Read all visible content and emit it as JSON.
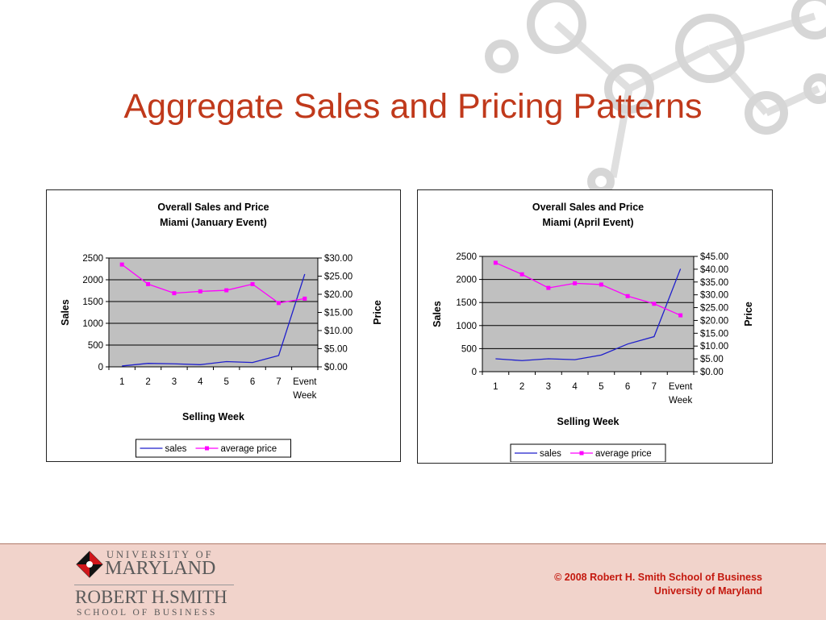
{
  "slide": {
    "title": "Aggregate Sales and Pricing Patterns",
    "footer_line1": "© 2008 Robert H. Smith School of Business",
    "footer_line2": "University of Maryland"
  },
  "logo": {
    "university_of": "UNIVERSITY OF",
    "maryland": "MARYLAND",
    "robert_h_smith": "ROBERT H.SMITH",
    "school_of_business": "SCHOOL OF BUSINESS"
  },
  "colors": {
    "title": "#c0391b",
    "sales_line": "#1f1fcc",
    "price_line": "#ff00ff",
    "plot_bg": "#c0c0c0",
    "footer_bg": "#f1d3cb",
    "footer_text": "#c4180e"
  },
  "chart_data": [
    {
      "type": "line",
      "title": "Overall Sales and Price",
      "subtitle": "Miami (January Event)",
      "xlabel": "Selling Week",
      "ylabel": "Sales",
      "y2label": "Price",
      "categories": [
        "1",
        "2",
        "3",
        "4",
        "5",
        "6",
        "7",
        "Event Week"
      ],
      "ylim": [
        0,
        2500
      ],
      "yticks": [
        0,
        500,
        1000,
        1500,
        2000,
        2500
      ],
      "y2lim": [
        0,
        30
      ],
      "y2ticks": [
        "$0.00",
        "$5.00",
        "$10.00",
        "$15.00",
        "$20.00",
        "$25.00",
        "$30.00"
      ],
      "grid": true,
      "legend": "bottom",
      "series": [
        {
          "name": "sales",
          "axis": "left",
          "marker": false,
          "values": [
            20,
            80,
            70,
            50,
            120,
            100,
            260,
            2130
          ]
        },
        {
          "name": "average price",
          "axis": "right",
          "marker": true,
          "values": [
            28.2,
            22.8,
            20.3,
            20.8,
            21.1,
            22.8,
            17.6,
            18.8
          ]
        }
      ]
    },
    {
      "type": "line",
      "title": "Overall Sales and Price",
      "subtitle": "Miami (April Event)",
      "xlabel": "Selling Week",
      "ylabel": "Sales",
      "y2label": "Price",
      "categories": [
        "1",
        "2",
        "3",
        "4",
        "5",
        "6",
        "7",
        "Event Week"
      ],
      "ylim": [
        0,
        2500
      ],
      "yticks": [
        0,
        500,
        1000,
        1500,
        2000,
        2500
      ],
      "y2lim": [
        0,
        45
      ],
      "y2ticks": [
        "$0.00",
        "$5.00",
        "$10.00",
        "$15.00",
        "$20.00",
        "$25.00",
        "$30.00",
        "$35.00",
        "$40.00",
        "$45.00"
      ],
      "grid": true,
      "legend": "bottom",
      "series": [
        {
          "name": "sales",
          "axis": "left",
          "marker": false,
          "values": [
            280,
            240,
            280,
            260,
            360,
            600,
            760,
            2230
          ]
        },
        {
          "name": "average price",
          "axis": "right",
          "marker": true,
          "values": [
            42.5,
            38.0,
            32.7,
            34.5,
            34.0,
            29.5,
            26.5,
            22.0
          ]
        }
      ]
    }
  ]
}
